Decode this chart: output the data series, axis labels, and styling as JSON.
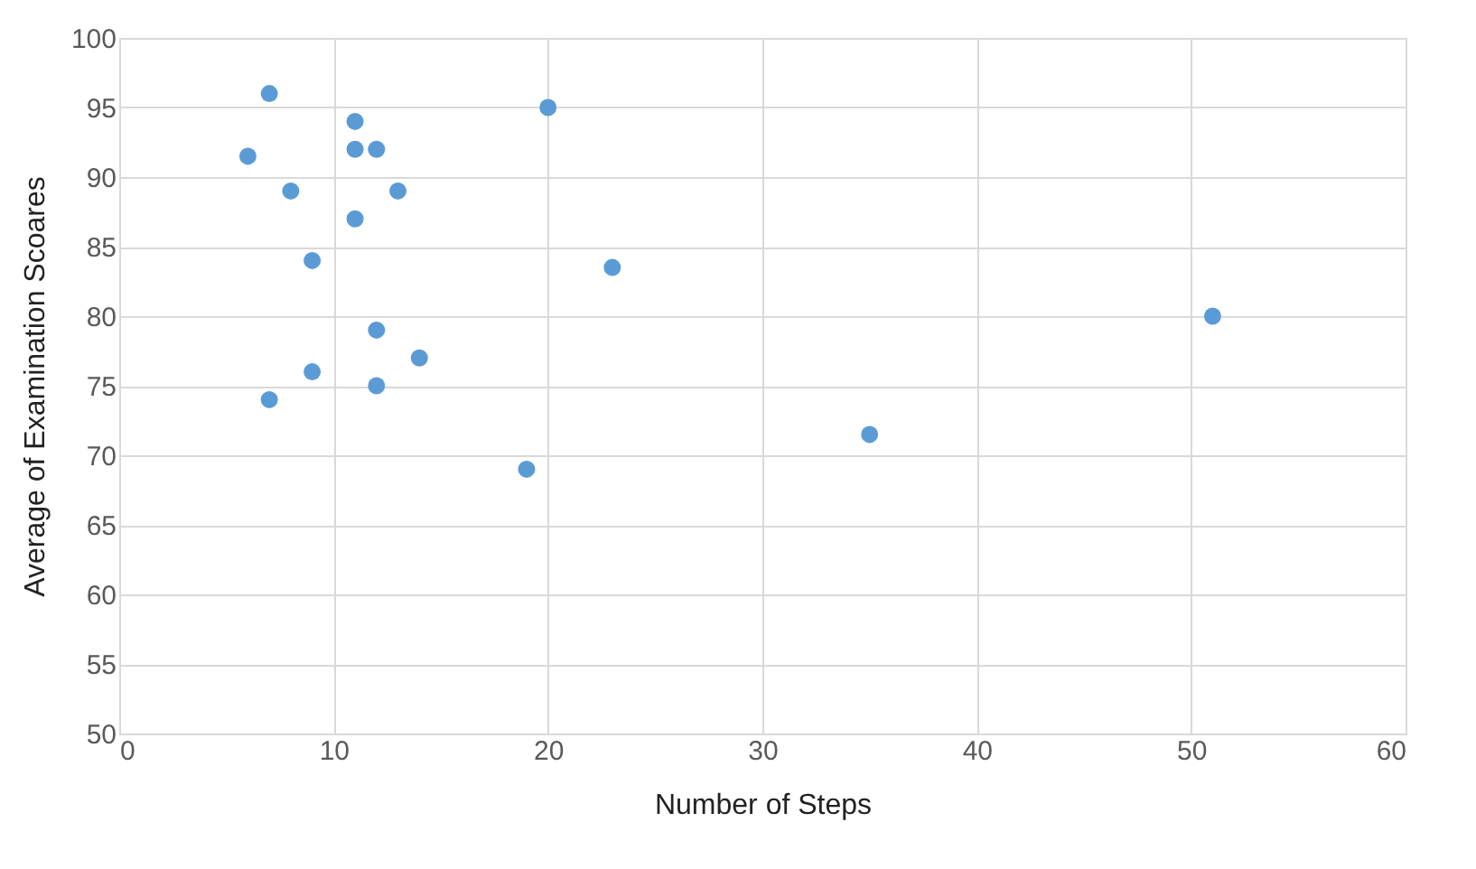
{
  "chart_data": {
    "type": "scatter",
    "xlabel": "Number  of Steps",
    "ylabel": "Average of Examination Scoares",
    "x": [
      7,
      6,
      8,
      11,
      11,
      12,
      13,
      11,
      9,
      20,
      23,
      12,
      14,
      9,
      12,
      7,
      19,
      35,
      51
    ],
    "series": [
      {
        "color": "#5b9bd5",
        "values": [
          96,
          91.5,
          89,
          94,
          92,
          92,
          89,
          87,
          84,
          95,
          83.5,
          79,
          77,
          76,
          75,
          74,
          69,
          71.5,
          80
        ]
      }
    ],
    "xlim": [
      0,
      60
    ],
    "xticks": [
      0,
      10,
      20,
      30,
      40,
      50,
      60
    ],
    "ylim": [
      50,
      100
    ],
    "yticks": [
      50,
      55,
      60,
      65,
      70,
      75,
      80,
      85,
      90,
      95,
      100
    ],
    "grid": true,
    "marker": "circle",
    "legend": false
  }
}
